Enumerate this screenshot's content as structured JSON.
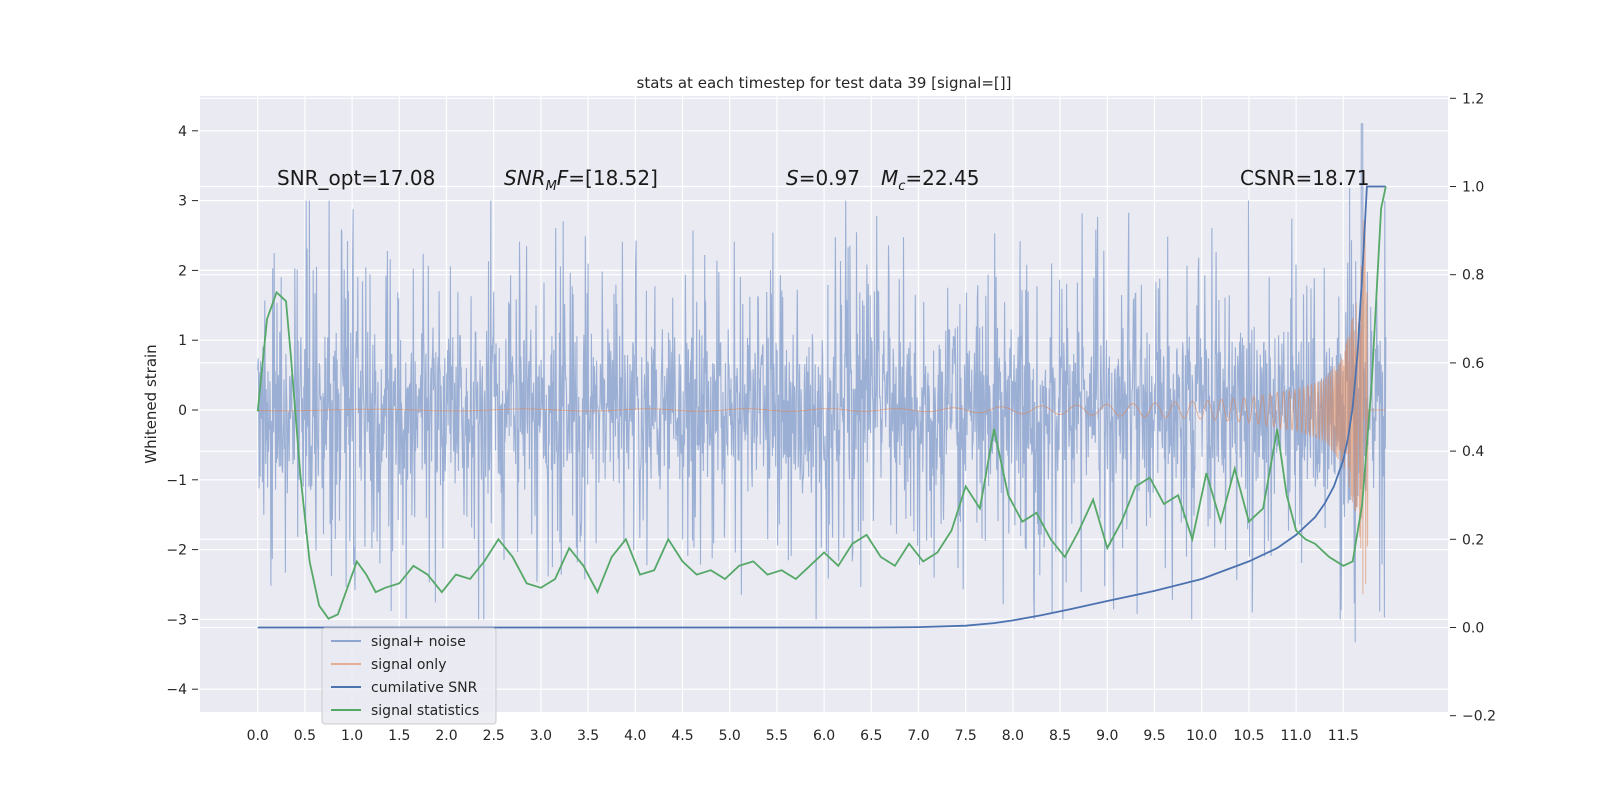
{
  "chart_data": {
    "type": "line",
    "title": "stats at each timestep for test data 39 [signal=[]]",
    "ylabel": "Whitened strain",
    "xlabel": "",
    "xlim": [
      -0.5,
      12.5
    ],
    "ylim": [
      -4.4,
      4.4
    ],
    "y2lim": [
      -0.2,
      1.2
    ],
    "x_ticks": [
      "0.0",
      "0.5",
      "1.0",
      "1.5",
      "2.0",
      "2.5",
      "3.0",
      "3.5",
      "4.0",
      "4.5",
      "5.0",
      "5.5",
      "6.0",
      "6.5",
      "7.0",
      "7.5",
      "8.0",
      "8.5",
      "9.0",
      "9.5",
      "10.0",
      "10.5",
      "11.0",
      "11.5"
    ],
    "y_ticks": [
      "4",
      "3",
      "2",
      "1",
      "0",
      "−1",
      "−2",
      "−3",
      "−4"
    ],
    "y2_ticks": [
      "1.2",
      "1.0",
      "0.8",
      "0.6",
      "0.4",
      "0.2",
      "0.0",
      "−0.2"
    ],
    "grid": true,
    "legend_position": "lower-left",
    "annotations": {
      "snr_opt": "SNR_opt=17.08",
      "snr_mf_prefix": "SNR",
      "snr_mf_sub": "M",
      "snr_mf_mid": "F",
      "snr_mf_value": "=[18.52]",
      "s_sym": "S",
      "s_value": "=0.97",
      "mc_sym": "M",
      "mc_sub": "c",
      "mc_value": "=22.45",
      "csnr": "CSNR=18.71"
    },
    "series": [
      {
        "name": "signal+ noise",
        "color": "#8da5cf",
        "axis": "left",
        "x_range": [
          0,
          11.95
        ],
        "amplitude_envelope": [
          1.3,
          3.0
        ],
        "peak": [
          11.7,
          4.1
        ]
      },
      {
        "name": "signal only",
        "color": "#dd8452",
        "axis": "left",
        "x_range": [
          0,
          11.95
        ],
        "chirp_envelope": {
          "x": [
            0,
            7.0,
            8.0,
            9.0,
            10.0,
            10.5,
            11.0,
            11.3,
            11.5,
            11.65,
            11.72
          ],
          "amp": [
            0.01,
            0.02,
            0.05,
            0.08,
            0.13,
            0.18,
            0.3,
            0.45,
            0.8,
            1.6,
            2.9
          ]
        }
      },
      {
        "name": "cumilative SNR",
        "color": "#4c72b0",
        "axis": "right",
        "x": [
          0,
          6.5,
          7.0,
          7.5,
          7.8,
          8.0,
          8.3,
          8.6,
          9.0,
          9.5,
          10.0,
          10.5,
          10.8,
          11.0,
          11.2,
          11.3,
          11.4,
          11.5,
          11.55,
          11.6,
          11.65,
          11.7,
          11.75,
          11.95
        ],
        "y": [
          0.0,
          0.0,
          0.001,
          0.004,
          0.01,
          0.016,
          0.028,
          0.041,
          0.06,
          0.083,
          0.11,
          0.15,
          0.18,
          0.21,
          0.25,
          0.28,
          0.32,
          0.38,
          0.43,
          0.5,
          0.62,
          0.8,
          1.0,
          1.0
        ]
      },
      {
        "name": "signal statistics",
        "color": "#55a868",
        "axis": "right",
        "x": [
          0,
          0.1,
          0.2,
          0.3,
          0.35,
          0.45,
          0.55,
          0.65,
          0.75,
          0.85,
          0.95,
          1.05,
          1.15,
          1.25,
          1.35,
          1.5,
          1.65,
          1.8,
          1.95,
          2.1,
          2.25,
          2.4,
          2.55,
          2.7,
          2.85,
          3.0,
          3.15,
          3.3,
          3.45,
          3.6,
          3.75,
          3.9,
          4.05,
          4.2,
          4.35,
          4.5,
          4.65,
          4.8,
          4.95,
          5.1,
          5.25,
          5.4,
          5.55,
          5.7,
          5.85,
          6.0,
          6.15,
          6.3,
          6.45,
          6.6,
          6.75,
          6.9,
          7.05,
          7.2,
          7.35,
          7.5,
          7.65,
          7.8,
          7.95,
          8.1,
          8.25,
          8.4,
          8.55,
          8.7,
          8.85,
          9.0,
          9.15,
          9.3,
          9.45,
          9.6,
          9.75,
          9.9,
          10.05,
          10.2,
          10.35,
          10.5,
          10.65,
          10.8,
          10.9,
          11.0,
          11.1,
          11.2,
          11.35,
          11.5,
          11.6,
          11.7,
          11.8,
          11.9,
          11.95
        ],
        "y": [
          0.49,
          0.7,
          0.76,
          0.74,
          0.62,
          0.35,
          0.15,
          0.05,
          0.02,
          0.03,
          0.09,
          0.15,
          0.12,
          0.08,
          0.09,
          0.1,
          0.14,
          0.12,
          0.08,
          0.12,
          0.11,
          0.15,
          0.2,
          0.16,
          0.1,
          0.09,
          0.11,
          0.18,
          0.14,
          0.08,
          0.16,
          0.2,
          0.12,
          0.13,
          0.2,
          0.15,
          0.12,
          0.13,
          0.11,
          0.14,
          0.15,
          0.12,
          0.13,
          0.11,
          0.14,
          0.17,
          0.14,
          0.19,
          0.21,
          0.16,
          0.14,
          0.19,
          0.15,
          0.17,
          0.22,
          0.32,
          0.27,
          0.45,
          0.3,
          0.24,
          0.26,
          0.2,
          0.16,
          0.22,
          0.29,
          0.18,
          0.24,
          0.32,
          0.34,
          0.28,
          0.3,
          0.2,
          0.35,
          0.24,
          0.36,
          0.24,
          0.27,
          0.45,
          0.3,
          0.22,
          0.2,
          0.19,
          0.16,
          0.14,
          0.15,
          0.28,
          0.55,
          0.95,
          1.0
        ]
      }
    ]
  }
}
